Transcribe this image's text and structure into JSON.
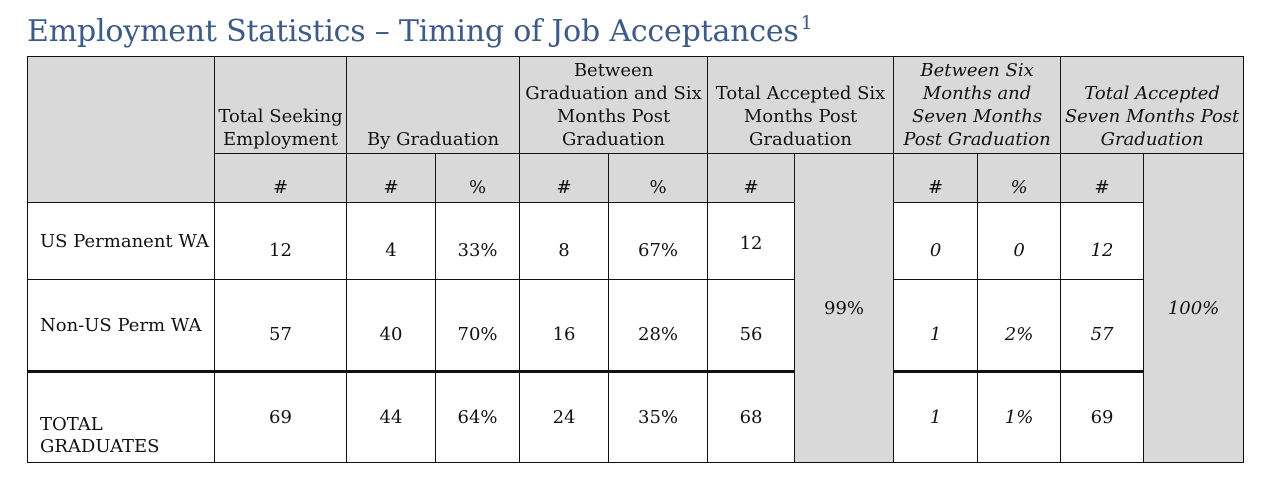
{
  "title": "Employment Statistics – Timing of Job Acceptances",
  "title_footnote": "1",
  "headers": {
    "total_seeking": "Total Seeking Employment",
    "by_graduation": "By Graduation",
    "between_grad_six": "Between Graduation and Six Months Post Graduation",
    "total_accepted_six": "Total Accepted Six Months Post Graduation",
    "between_six_seven": "Between Six Months and Seven Months Post Graduation",
    "total_accepted_seven": "Total Accepted Seven Months Post Graduation"
  },
  "subheaders": {
    "count": "#",
    "percent": "%"
  },
  "rows": [
    {
      "label": "US Permanent WA",
      "total_seeking": "12",
      "by_grad_n": "4",
      "by_grad_pct": "33%",
      "six_n": "8",
      "six_pct": "67%",
      "acc_six_n": "12",
      "seven_n": "0",
      "seven_pct": "0",
      "acc_seven_n": "12"
    },
    {
      "label": "Non-US Perm WA",
      "total_seeking": "57",
      "by_grad_n": "40",
      "by_grad_pct": "70%",
      "six_n": "16",
      "six_pct": "28%",
      "acc_six_n": "56",
      "seven_n": "1",
      "seven_pct": "2%",
      "acc_seven_n": "57"
    },
    {
      "label": "TOTAL GRADUATES",
      "total_seeking": "69",
      "by_grad_n": "44",
      "by_grad_pct": "64%",
      "six_n": "24",
      "six_pct": "35%",
      "acc_six_n": "68",
      "seven_n": "1",
      "seven_pct": "1%",
      "acc_seven_n": "69"
    }
  ],
  "acc_six_pct": "99%",
  "acc_seven_pct": "100%"
}
